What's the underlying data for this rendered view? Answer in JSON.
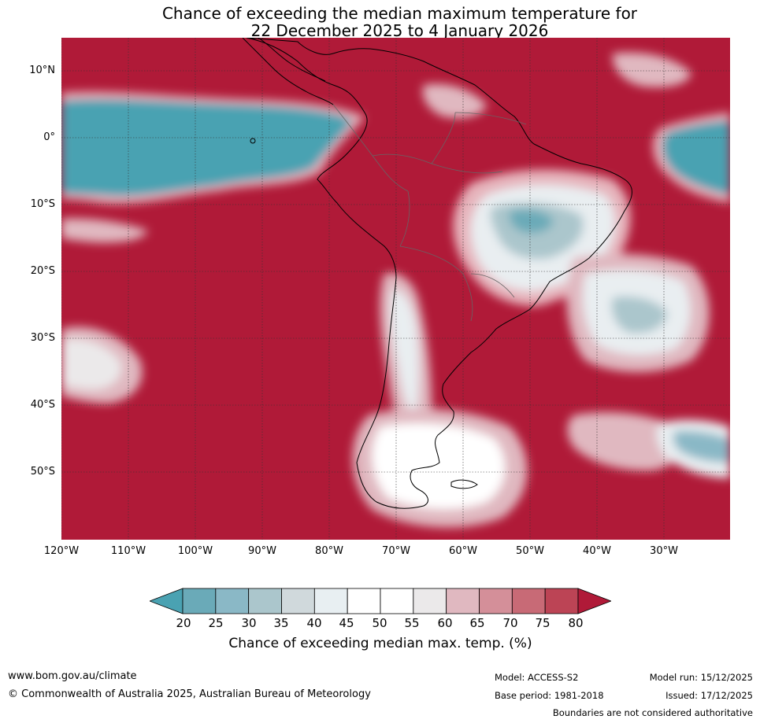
{
  "title": {
    "line1": "Chance of exceeding the median maximum temperature for",
    "line2": "22 December 2025 to 4 January 2026"
  },
  "axes": {
    "lat_labels": [
      "10°N",
      "0°",
      "10°S",
      "20°S",
      "30°S",
      "40°S",
      "50°S"
    ],
    "lon_labels": [
      "120°W",
      "110°W",
      "100°W",
      "90°W",
      "80°W",
      "70°W",
      "60°W",
      "50°W",
      "40°W",
      "30°W"
    ]
  },
  "colorbar": {
    "ticks": [
      "20",
      "25",
      "30",
      "35",
      "40",
      "45",
      "50",
      "55",
      "60",
      "65",
      "70",
      "75",
      "80"
    ],
    "colors": [
      "#4aa2b2",
      "#6aaab8",
      "#8ab8c6",
      "#abc6cc",
      "#d0d9dc",
      "#e8eff2",
      "#ffffff",
      "#ffffff",
      "#ebe9ea",
      "#e0b8c0",
      "#d48f99",
      "#c86a76",
      "#bc4455",
      "#b01a38"
    ],
    "label": "Chance of exceeding median max. temp. (%)"
  },
  "footer": {
    "website": "www.bom.gov.au/climate",
    "copyright": "© Commonwealth of Australia 2025, Australian Bureau of Meteorology",
    "model": "Model: ACCESS-S2",
    "base_period": "Base period: 1981-2018",
    "model_run": "Model run: 15/12/2025",
    "issued": "Issued: 17/12/2025",
    "disclaimer": "Boundaries are not considered authoritative"
  }
}
